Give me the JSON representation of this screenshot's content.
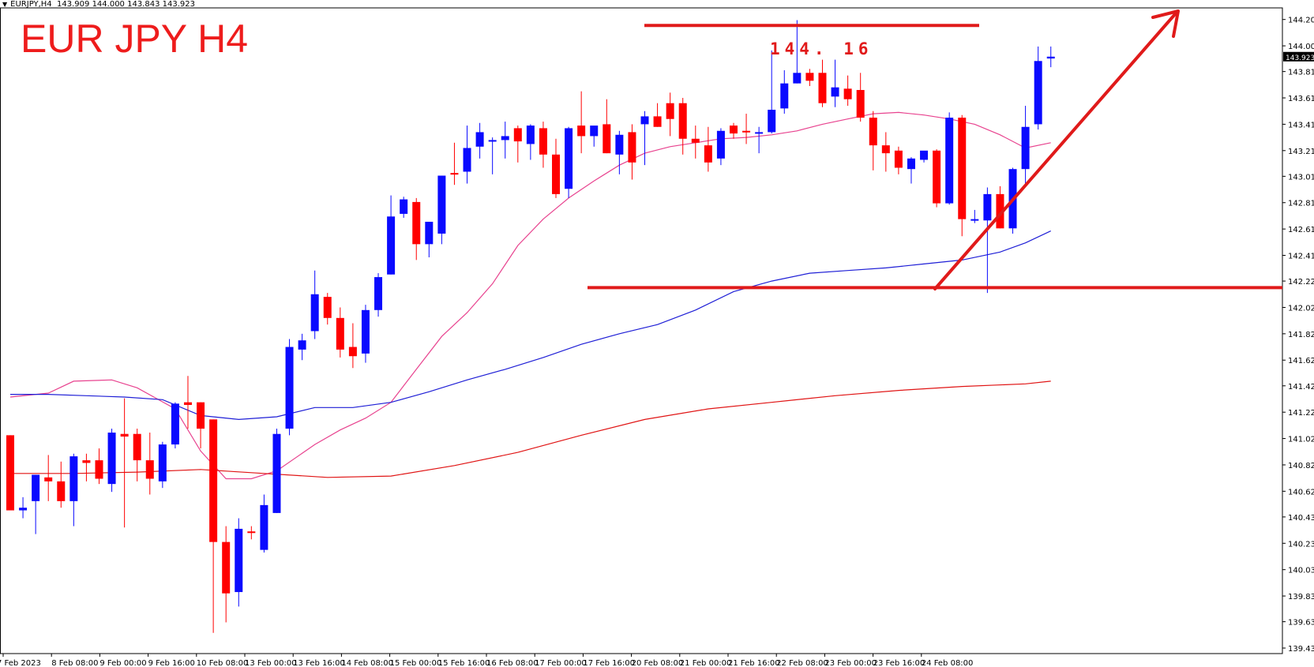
{
  "header": {
    "symbol": "EURJPY,H4",
    "ohlc": "143.909 144.000 143.843 143.923"
  },
  "chart_data": {
    "type": "candlestick",
    "title": "EUR JPY H4",
    "annotations": [
      {
        "text": "144. 16"
      }
    ],
    "current_price": 143.923,
    "current_price_label": "143.923",
    "ylim": [
      139.435,
      144.305
    ],
    "y_ticks": [
      "144.205",
      "144.005",
      "143.810",
      "143.610",
      "143.410",
      "143.210",
      "143.015",
      "142.815",
      "142.615",
      "142.415",
      "142.220",
      "142.020",
      "141.820",
      "141.620",
      "141.425",
      "141.225",
      "141.025",
      "140.825",
      "140.625",
      "140.430",
      "140.230",
      "140.030",
      "139.830",
      "139.635",
      "139.435"
    ],
    "x_labels": [
      "7 Feb 2023",
      "8 Feb 08:00",
      "9 Feb 00:00",
      "9 Feb 16:00",
      "10 Feb 08:00",
      "13 Feb 00:00",
      "13 Feb 16:00",
      "14 Feb 08:00",
      "15 Feb 00:00",
      "15 Feb 16:00",
      "16 Feb 08:00",
      "17 Feb 00:00",
      "17 Feb 16:00",
      "20 Feb 08:00",
      "21 Feb 00:00",
      "21 Feb 16:00",
      "22 Feb 08:00",
      "23 Feb 00:00",
      "23 Feb 16:00",
      "24 Feb 08:00"
    ],
    "candles": [
      {
        "o": 141.05,
        "h": 141.05,
        "l": 140.48,
        "c": 140.48
      },
      {
        "o": 140.48,
        "h": 140.58,
        "l": 140.42,
        "c": 140.5
      },
      {
        "o": 140.55,
        "h": 140.75,
        "l": 140.3,
        "c": 140.75
      },
      {
        "o": 140.73,
        "h": 140.9,
        "l": 140.55,
        "c": 140.7
      },
      {
        "o": 140.7,
        "h": 140.85,
        "l": 140.5,
        "c": 140.55
      },
      {
        "o": 140.55,
        "h": 140.91,
        "l": 140.36,
        "c": 140.89
      },
      {
        "o": 140.86,
        "h": 140.91,
        "l": 140.7,
        "c": 140.84
      },
      {
        "o": 140.86,
        "h": 140.95,
        "l": 140.68,
        "c": 140.72
      },
      {
        "o": 140.68,
        "h": 141.1,
        "l": 140.62,
        "c": 141.07
      },
      {
        "o": 141.06,
        "h": 141.33,
        "l": 140.35,
        "c": 141.04
      },
      {
        "o": 141.06,
        "h": 141.1,
        "l": 140.7,
        "c": 140.86
      },
      {
        "o": 140.86,
        "h": 141.07,
        "l": 140.6,
        "c": 140.72
      },
      {
        "o": 140.7,
        "h": 141.0,
        "l": 140.65,
        "c": 140.98
      },
      {
        "o": 140.98,
        "h": 141.3,
        "l": 140.95,
        "c": 141.29
      },
      {
        "o": 141.3,
        "h": 141.5,
        "l": 141.1,
        "c": 141.28
      },
      {
        "o": 141.3,
        "h": 141.3,
        "l": 140.95,
        "c": 141.1
      },
      {
        "o": 141.17,
        "h": 141.17,
        "l": 139.55,
        "c": 140.24
      },
      {
        "o": 140.24,
        "h": 140.36,
        "l": 139.63,
        "c": 139.85
      },
      {
        "o": 139.86,
        "h": 140.42,
        "l": 139.75,
        "c": 140.34
      },
      {
        "o": 140.32,
        "h": 140.36,
        "l": 140.26,
        "c": 140.31
      },
      {
        "o": 140.18,
        "h": 140.6,
        "l": 140.16,
        "c": 140.52
      },
      {
        "o": 140.46,
        "h": 141.1,
        "l": 140.46,
        "c": 141.06
      },
      {
        "o": 141.1,
        "h": 141.78,
        "l": 141.05,
        "c": 141.72
      },
      {
        "o": 141.7,
        "h": 141.82,
        "l": 141.62,
        "c": 141.77
      },
      {
        "o": 141.84,
        "h": 142.3,
        "l": 141.78,
        "c": 142.12
      },
      {
        "o": 142.1,
        "h": 142.13,
        "l": 141.89,
        "c": 141.94
      },
      {
        "o": 141.94,
        "h": 142.02,
        "l": 141.64,
        "c": 141.7
      },
      {
        "o": 141.72,
        "h": 141.9,
        "l": 141.56,
        "c": 141.65
      },
      {
        "o": 141.67,
        "h": 142.04,
        "l": 141.6,
        "c": 142.0
      },
      {
        "o": 142.0,
        "h": 142.28,
        "l": 141.95,
        "c": 142.25
      },
      {
        "o": 142.27,
        "h": 142.87,
        "l": 142.27,
        "c": 142.71
      },
      {
        "o": 142.73,
        "h": 142.86,
        "l": 142.7,
        "c": 142.84
      },
      {
        "o": 142.82,
        "h": 142.85,
        "l": 142.38,
        "c": 142.5
      },
      {
        "o": 142.5,
        "h": 142.66,
        "l": 142.4,
        "c": 142.67
      },
      {
        "o": 142.58,
        "h": 143.02,
        "l": 142.5,
        "c": 143.02
      },
      {
        "o": 143.04,
        "h": 143.27,
        "l": 142.95,
        "c": 143.03
      },
      {
        "o": 143.05,
        "h": 143.4,
        "l": 142.96,
        "c": 143.23
      },
      {
        "o": 143.24,
        "h": 143.42,
        "l": 143.15,
        "c": 143.35
      },
      {
        "o": 143.28,
        "h": 143.31,
        "l": 143.03,
        "c": 143.29
      },
      {
        "o": 143.29,
        "h": 143.43,
        "l": 143.15,
        "c": 143.32
      },
      {
        "o": 143.38,
        "h": 143.4,
        "l": 143.12,
        "c": 143.28
      },
      {
        "o": 143.26,
        "h": 143.41,
        "l": 143.14,
        "c": 143.4
      },
      {
        "o": 143.38,
        "h": 143.43,
        "l": 143.08,
        "c": 143.18
      },
      {
        "o": 143.18,
        "h": 143.3,
        "l": 142.85,
        "c": 142.88
      },
      {
        "o": 142.92,
        "h": 143.39,
        "l": 142.85,
        "c": 143.38
      },
      {
        "o": 143.4,
        "h": 143.66,
        "l": 143.19,
        "c": 143.32
      },
      {
        "o": 143.32,
        "h": 143.37,
        "l": 143.24,
        "c": 143.4
      },
      {
        "o": 143.41,
        "h": 143.6,
        "l": 143.19,
        "c": 143.19
      },
      {
        "o": 143.18,
        "h": 143.36,
        "l": 143.03,
        "c": 143.33
      },
      {
        "o": 143.35,
        "h": 143.41,
        "l": 142.99,
        "c": 143.12
      },
      {
        "o": 143.41,
        "h": 143.51,
        "l": 143.1,
        "c": 143.47
      },
      {
        "o": 143.47,
        "h": 143.57,
        "l": 143.39,
        "c": 143.39
      },
      {
        "o": 143.57,
        "h": 143.65,
        "l": 143.32,
        "c": 143.45
      },
      {
        "o": 143.57,
        "h": 143.61,
        "l": 143.18,
        "c": 143.3
      },
      {
        "o": 143.3,
        "h": 143.4,
        "l": 143.15,
        "c": 143.27
      },
      {
        "o": 143.25,
        "h": 143.39,
        "l": 143.05,
        "c": 143.12
      },
      {
        "o": 143.15,
        "h": 143.38,
        "l": 143.1,
        "c": 143.36
      },
      {
        "o": 143.4,
        "h": 143.42,
        "l": 143.3,
        "c": 143.34
      },
      {
        "o": 143.36,
        "h": 143.49,
        "l": 143.26,
        "c": 143.35
      },
      {
        "o": 143.35,
        "h": 143.39,
        "l": 143.19,
        "c": 143.35
      },
      {
        "o": 143.35,
        "h": 143.97,
        "l": 143.34,
        "c": 143.52
      },
      {
        "o": 143.53,
        "h": 143.82,
        "l": 143.49,
        "c": 143.72
      },
      {
        "o": 143.72,
        "h": 144.2,
        "l": 143.72,
        "c": 143.8
      },
      {
        "o": 143.8,
        "h": 143.83,
        "l": 143.7,
        "c": 143.74
      },
      {
        "o": 143.8,
        "h": 143.9,
        "l": 143.54,
        "c": 143.57
      },
      {
        "o": 143.62,
        "h": 143.9,
        "l": 143.54,
        "c": 143.69
      },
      {
        "o": 143.68,
        "h": 143.78,
        "l": 143.55,
        "c": 143.6
      },
      {
        "o": 143.67,
        "h": 143.8,
        "l": 143.43,
        "c": 143.46
      },
      {
        "o": 143.46,
        "h": 143.51,
        "l": 143.06,
        "c": 143.25
      },
      {
        "o": 143.25,
        "h": 143.35,
        "l": 143.05,
        "c": 143.19
      },
      {
        "o": 143.21,
        "h": 143.24,
        "l": 143.03,
        "c": 143.08
      },
      {
        "o": 143.07,
        "h": 143.16,
        "l": 142.96,
        "c": 143.15
      },
      {
        "o": 143.14,
        "h": 143.2,
        "l": 143.12,
        "c": 143.21
      },
      {
        "o": 143.21,
        "h": 143.22,
        "l": 142.78,
        "c": 142.81
      },
      {
        "o": 142.81,
        "h": 143.5,
        "l": 142.8,
        "c": 143.46
      },
      {
        "o": 143.46,
        "h": 143.48,
        "l": 142.56,
        "c": 142.69
      },
      {
        "o": 142.68,
        "h": 142.76,
        "l": 142.66,
        "c": 142.69
      },
      {
        "o": 142.68,
        "h": 142.93,
        "l": 142.13,
        "c": 142.88
      },
      {
        "o": 142.88,
        "h": 142.94,
        "l": 142.62,
        "c": 142.62
      },
      {
        "o": 142.62,
        "h": 143.08,
        "l": 142.58,
        "c": 143.07
      },
      {
        "o": 143.07,
        "h": 143.55,
        "l": 142.96,
        "c": 143.39
      },
      {
        "o": 143.41,
        "h": 144.0,
        "l": 143.37,
        "c": 143.89
      },
      {
        "o": 143.909,
        "h": 144.0,
        "l": 143.843,
        "c": 143.923
      }
    ],
    "series": [
      {
        "color": "#e8438f",
        "x": [
          0,
          3,
          5,
          8,
          10,
          13,
          15,
          17,
          19,
          21,
          24,
          26,
          28,
          30,
          32,
          34,
          36,
          38,
          40,
          42,
          44,
          46,
          48,
          50,
          52,
          54,
          56,
          58,
          60,
          62,
          64,
          66,
          68,
          70,
          72,
          74,
          76,
          78,
          80,
          82
        ],
        "y": [
          141.34,
          141.37,
          141.46,
          141.47,
          141.41,
          141.25,
          140.93,
          140.72,
          140.72,
          140.78,
          140.98,
          141.09,
          141.18,
          141.3,
          141.55,
          141.8,
          141.98,
          142.2,
          142.49,
          142.69,
          142.85,
          142.98,
          143.1,
          143.19,
          143.24,
          143.27,
          143.3,
          143.31,
          143.33,
          143.36,
          143.41,
          143.45,
          143.49,
          143.5,
          143.48,
          143.45,
          143.41,
          143.33,
          143.23,
          143.27
        ]
      },
      {
        "color": "#1f1fd6",
        "x": [
          0,
          3,
          6,
          9,
          12,
          15,
          18,
          21,
          24,
          27,
          30,
          33,
          36,
          39,
          42,
          45,
          48,
          51,
          54,
          57,
          60,
          63,
          66,
          69,
          72,
          75,
          78,
          80,
          82
        ],
        "y": [
          141.36,
          141.36,
          141.35,
          141.34,
          141.32,
          141.2,
          141.17,
          141.19,
          141.26,
          141.26,
          141.3,
          141.38,
          141.47,
          141.55,
          141.64,
          141.74,
          141.82,
          141.89,
          142.0,
          142.14,
          142.22,
          142.28,
          142.3,
          142.32,
          142.35,
          142.38,
          142.44,
          142.51,
          142.6
        ]
      },
      {
        "color": "#e01414",
        "x": [
          0,
          5,
          10,
          15,
          20,
          25,
          30,
          35,
          40,
          45,
          50,
          55,
          60,
          65,
          70,
          75,
          80,
          82
        ],
        "y": [
          140.76,
          140.76,
          140.77,
          140.79,
          140.76,
          140.73,
          140.74,
          140.82,
          140.92,
          141.05,
          141.17,
          141.25,
          141.3,
          141.35,
          141.39,
          141.42,
          141.44,
          141.46
        ]
      }
    ],
    "levels": [
      144.16,
      142.17
    ]
  }
}
